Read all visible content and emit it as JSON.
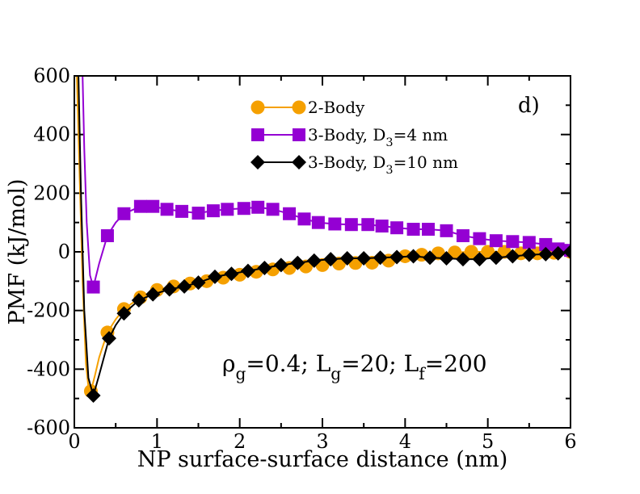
{
  "chart_data": {
    "type": "line",
    "xlabel": "NP surface-surface distance (nm)",
    "ylabel": "PMF (kJ/mol)",
    "xlim": [
      0,
      6
    ],
    "ylim": [
      -600,
      600
    ],
    "xticks": [
      0,
      1,
      2,
      3,
      4,
      5,
      6
    ],
    "yticks": [
      -600,
      -400,
      -200,
      0,
      200,
      400,
      600
    ],
    "xtick_labels": [
      "0",
      "1",
      "2",
      "3",
      "4",
      "5",
      "6"
    ],
    "ytick_labels": [
      "-600",
      "-400",
      "-200",
      "0",
      "200",
      "400",
      "600"
    ],
    "panel_label": "d)",
    "annotation": {
      "rho": "ρ",
      "rho_sub": "g",
      "rho_val": "=0.4; L",
      "lg_sub": "g",
      "lg_val": "=20; L",
      "lf_sub": "f",
      "lf_val": "=200"
    },
    "legend_position": "top-right",
    "series": [
      {
        "name": "2-Body",
        "legend_main": "2-Body",
        "legend_sub": "",
        "legend_tail": "",
        "color": "#f5a000",
        "marker": "circle",
        "x": [
          0.2,
          0.4,
          0.6,
          0.8,
          1.0,
          1.2,
          1.4,
          1.6,
          1.8,
          2.0,
          2.2,
          2.4,
          2.6,
          2.8,
          3.0,
          3.2,
          3.4,
          3.6,
          3.8,
          4.0,
          4.2,
          4.4,
          4.6,
          4.8,
          5.0,
          5.2,
          5.4,
          5.6,
          5.8,
          6.0
        ],
        "y": [
          -475,
          -275,
          -195,
          -155,
          -130,
          -118,
          -108,
          -100,
          -88,
          -78,
          -68,
          -60,
          -55,
          -50,
          -45,
          -40,
          -38,
          -37,
          -30,
          -15,
          -10,
          -5,
          -2,
          0,
          0,
          0,
          -5,
          -5,
          -3,
          0
        ],
        "curve": [
          [
            0.03,
            600
          ],
          [
            0.06,
            300
          ],
          [
            0.1,
            -100
          ],
          [
            0.14,
            -380
          ],
          [
            0.17,
            -460
          ],
          [
            0.2,
            -475
          ],
          [
            0.25,
            -420
          ],
          [
            0.3,
            -360
          ],
          [
            0.4,
            -275
          ],
          [
            0.5,
            -230
          ],
          [
            0.6,
            -195
          ],
          [
            0.8,
            -155
          ],
          [
            1.0,
            -130
          ],
          [
            1.2,
            -118
          ],
          [
            1.4,
            -108
          ],
          [
            1.6,
            -100
          ],
          [
            1.8,
            -88
          ],
          [
            2.0,
            -78
          ],
          [
            2.2,
            -68
          ],
          [
            2.4,
            -60
          ],
          [
            2.6,
            -55
          ],
          [
            2.8,
            -50
          ],
          [
            3.0,
            -45
          ],
          [
            3.2,
            -40
          ],
          [
            3.4,
            -38
          ],
          [
            3.6,
            -37
          ],
          [
            3.8,
            -30
          ],
          [
            4.0,
            -15
          ],
          [
            4.2,
            -10
          ],
          [
            4.4,
            -5
          ],
          [
            4.6,
            -2
          ],
          [
            4.8,
            0
          ],
          [
            5.0,
            0
          ],
          [
            5.2,
            0
          ],
          [
            5.4,
            -5
          ],
          [
            5.6,
            -5
          ],
          [
            5.8,
            -3
          ],
          [
            6.0,
            0
          ]
        ]
      },
      {
        "name": "3-Body, D3=4 nm",
        "legend_main": "3-Body, D",
        "legend_sub": "3",
        "legend_tail": "=4 nm",
        "color": "#9400d3",
        "marker": "square",
        "x": [
          0.23,
          0.4,
          0.6,
          0.8,
          0.95,
          1.12,
          1.3,
          1.5,
          1.68,
          1.85,
          2.05,
          2.22,
          2.4,
          2.6,
          2.78,
          2.95,
          3.15,
          3.35,
          3.55,
          3.72,
          3.9,
          4.1,
          4.28,
          4.5,
          4.7,
          4.9,
          5.1,
          5.3,
          5.5,
          5.7,
          5.85,
          6.0
        ],
        "y": [
          -120,
          55,
          130,
          155,
          155,
          145,
          138,
          132,
          140,
          145,
          148,
          152,
          145,
          130,
          112,
          100,
          95,
          93,
          93,
          88,
          82,
          77,
          77,
          72,
          55,
          45,
          38,
          35,
          32,
          25,
          10,
          5
        ],
        "curve": [
          [
            0.1,
            600
          ],
          [
            0.12,
            350
          ],
          [
            0.15,
            100
          ],
          [
            0.19,
            -80
          ],
          [
            0.23,
            -120
          ],
          [
            0.3,
            -40
          ],
          [
            0.4,
            55
          ],
          [
            0.5,
            100
          ],
          [
            0.6,
            130
          ],
          [
            0.8,
            155
          ],
          [
            0.95,
            155
          ],
          [
            1.12,
            145
          ],
          [
            1.3,
            138
          ],
          [
            1.5,
            132
          ],
          [
            1.68,
            140
          ],
          [
            1.85,
            145
          ],
          [
            2.05,
            148
          ],
          [
            2.22,
            152
          ],
          [
            2.4,
            145
          ],
          [
            2.6,
            130
          ],
          [
            2.78,
            112
          ],
          [
            2.95,
            100
          ],
          [
            3.15,
            95
          ],
          [
            3.35,
            93
          ],
          [
            3.55,
            93
          ],
          [
            3.72,
            88
          ],
          [
            3.9,
            82
          ],
          [
            4.1,
            77
          ],
          [
            4.28,
            77
          ],
          [
            4.5,
            72
          ],
          [
            4.7,
            55
          ],
          [
            4.9,
            45
          ],
          [
            5.1,
            38
          ],
          [
            5.3,
            35
          ],
          [
            5.5,
            32
          ],
          [
            5.7,
            25
          ],
          [
            5.85,
            10
          ],
          [
            6.0,
            5
          ]
        ]
      },
      {
        "name": "3-Body, D3=10 nm",
        "legend_main": "3-Body, D",
        "legend_sub": "3",
        "legend_tail": "=10 nm",
        "color": "#000000",
        "marker": "diamond",
        "x": [
          0.23,
          0.42,
          0.6,
          0.78,
          0.95,
          1.15,
          1.33,
          1.5,
          1.7,
          1.9,
          2.1,
          2.3,
          2.5,
          2.7,
          2.9,
          3.1,
          3.3,
          3.5,
          3.7,
          3.9,
          4.1,
          4.3,
          4.5,
          4.7,
          4.9,
          5.1,
          5.3,
          5.5,
          5.7,
          5.85,
          6.0
        ],
        "y": [
          -490,
          -295,
          -210,
          -165,
          -145,
          -128,
          -118,
          -105,
          -85,
          -75,
          -65,
          -55,
          -45,
          -38,
          -30,
          -25,
          -22,
          -22,
          -20,
          -18,
          -15,
          -20,
          -22,
          -25,
          -25,
          -20,
          -15,
          -10,
          -8,
          -5,
          0
        ],
        "curve": [
          [
            0.05,
            600
          ],
          [
            0.08,
            200
          ],
          [
            0.12,
            -200
          ],
          [
            0.17,
            -430
          ],
          [
            0.23,
            -490
          ],
          [
            0.3,
            -420
          ],
          [
            0.42,
            -295
          ],
          [
            0.5,
            -250
          ],
          [
            0.6,
            -210
          ],
          [
            0.78,
            -165
          ],
          [
            0.95,
            -145
          ],
          [
            1.15,
            -128
          ],
          [
            1.33,
            -118
          ],
          [
            1.5,
            -105
          ],
          [
            1.7,
            -85
          ],
          [
            1.9,
            -75
          ],
          [
            2.1,
            -65
          ],
          [
            2.3,
            -55
          ],
          [
            2.5,
            -45
          ],
          [
            2.7,
            -38
          ],
          [
            2.9,
            -30
          ],
          [
            3.1,
            -25
          ],
          [
            3.3,
            -22
          ],
          [
            3.5,
            -22
          ],
          [
            3.7,
            -20
          ],
          [
            3.9,
            -18
          ],
          [
            4.1,
            -15
          ],
          [
            4.3,
            -20
          ],
          [
            4.5,
            -22
          ],
          [
            4.7,
            -25
          ],
          [
            4.9,
            -25
          ],
          [
            5.1,
            -20
          ],
          [
            5.3,
            -15
          ],
          [
            5.5,
            -10
          ],
          [
            5.7,
            -8
          ],
          [
            5.85,
            -5
          ],
          [
            6.0,
            0
          ]
        ]
      }
    ]
  }
}
